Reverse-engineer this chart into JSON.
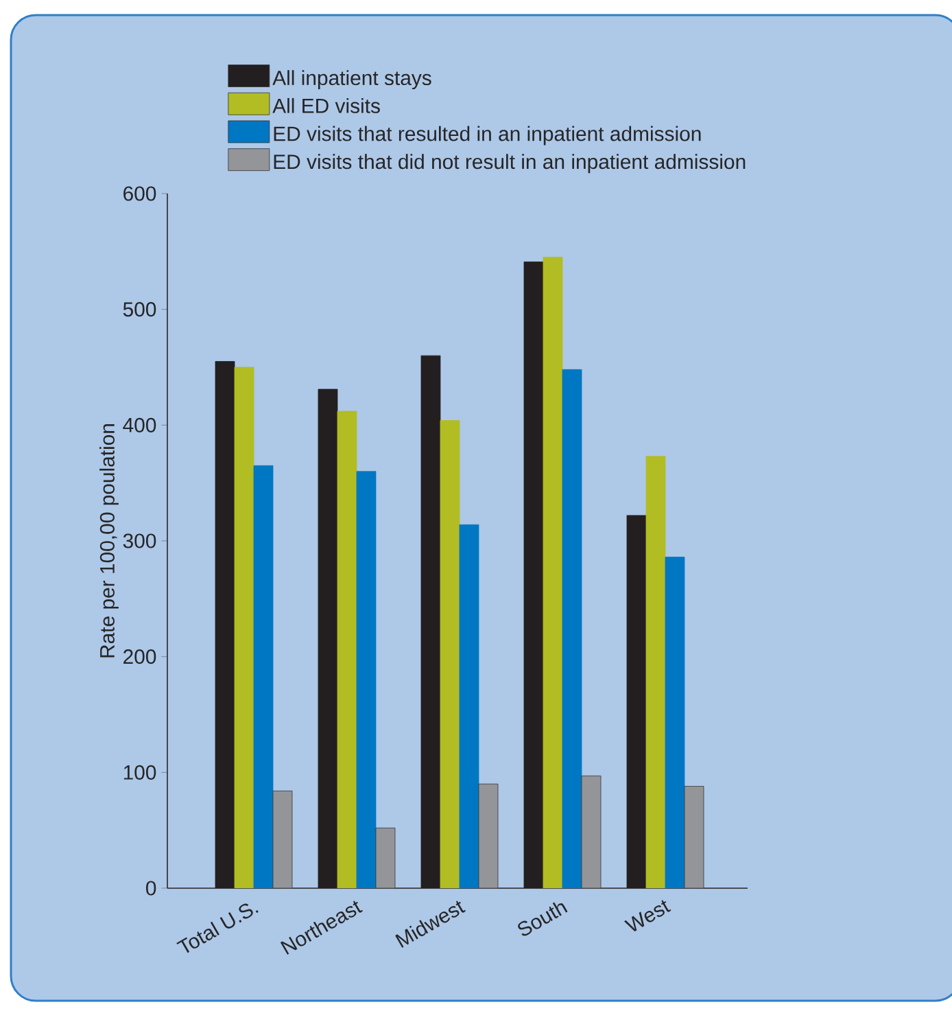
{
  "chart_data": {
    "type": "bar",
    "ylabel": "Rate per 100,00 poulation",
    "categories": [
      "Total U.S.",
      "Northeast",
      "Midwest",
      "South",
      "West"
    ],
    "series": [
      {
        "name": "All inpatient stays",
        "color": "#231f20",
        "values": [
          455,
          431,
          460,
          541,
          322
        ]
      },
      {
        "name": "All ED visits",
        "color": "#b1bd22",
        "values": [
          450,
          412,
          404,
          545,
          373
        ]
      },
      {
        "name": "ED visits that resulted in an inpatient admission",
        "color": "#0077c3",
        "values": [
          365,
          360,
          314,
          448,
          286
        ]
      },
      {
        "name": "ED visits that did not result in an inpatient admission",
        "color": "#949599",
        "values": [
          84,
          52,
          90,
          97,
          88
        ]
      }
    ],
    "ylim": [
      0,
      600
    ],
    "yticks": [
      0,
      100,
      200,
      300,
      400,
      500,
      600
    ],
    "grid": false,
    "legend": "top"
  }
}
